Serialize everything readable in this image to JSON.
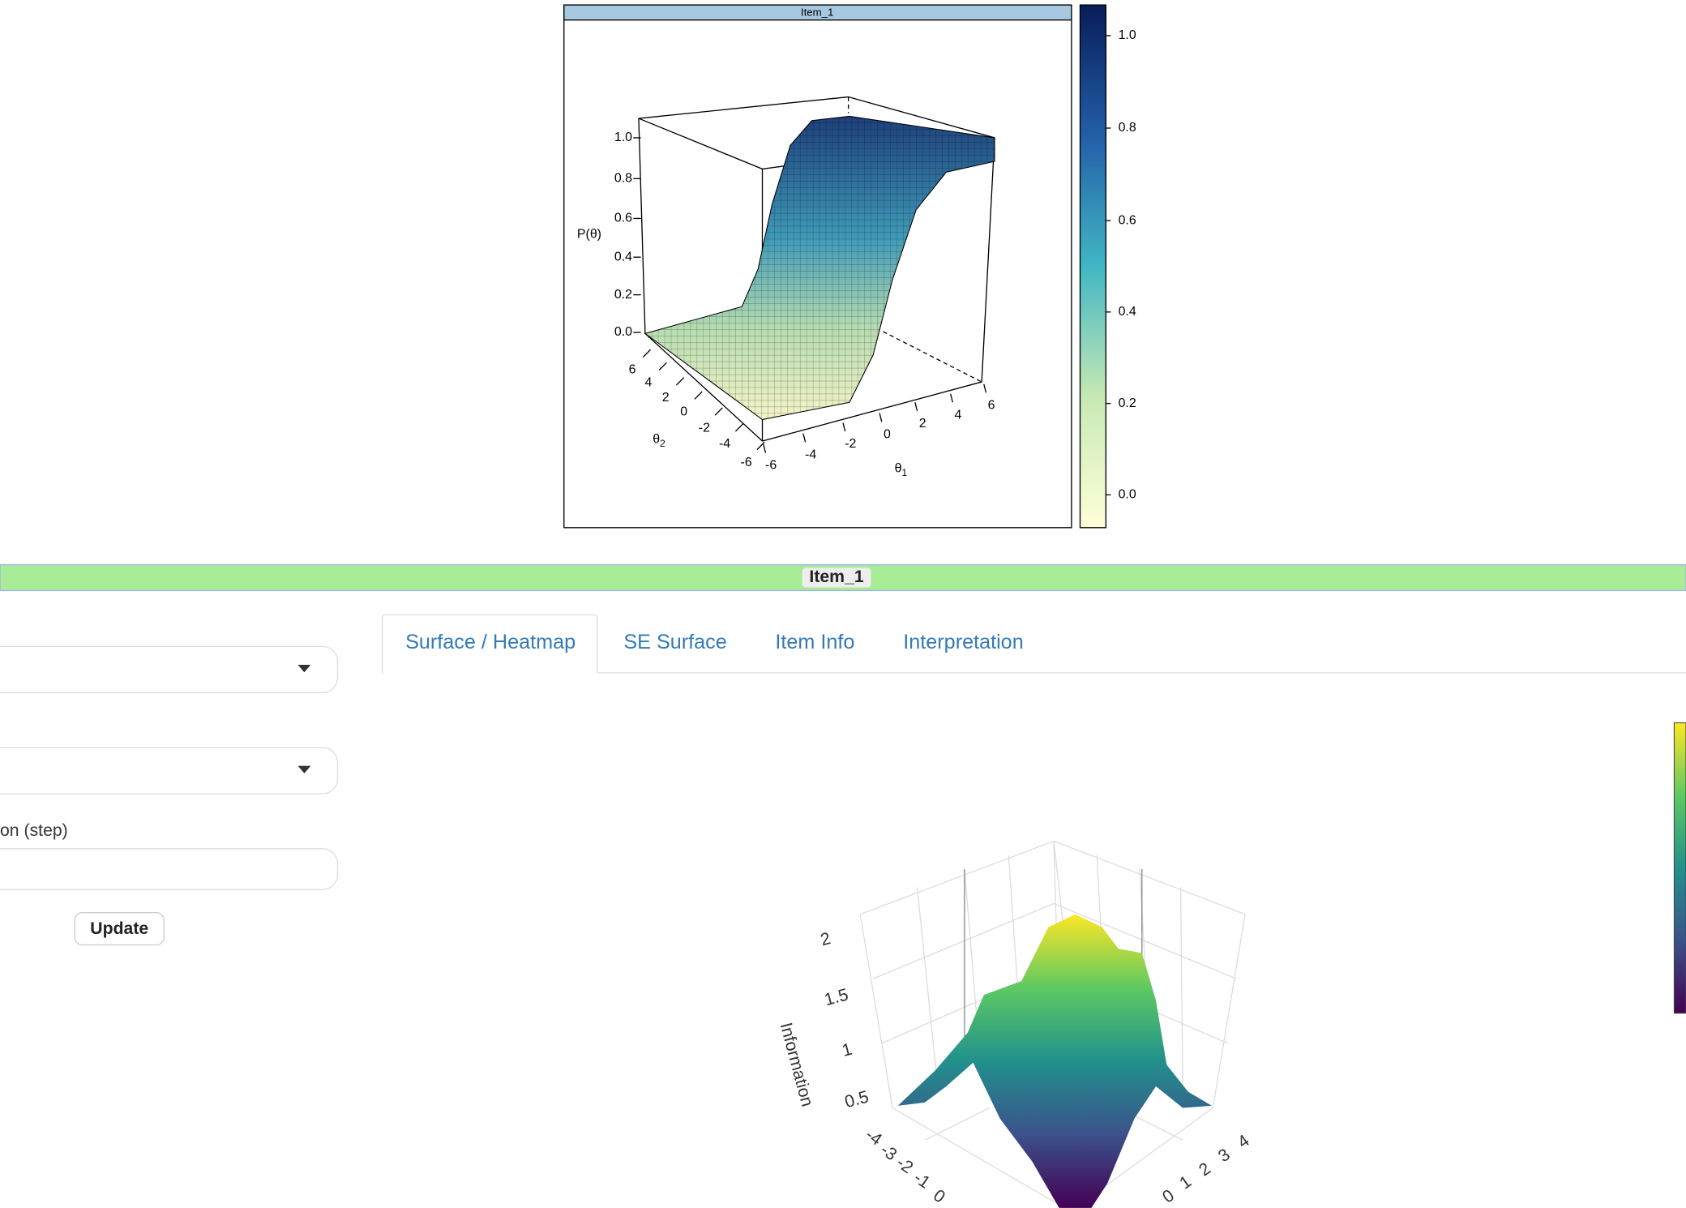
{
  "top_plot": {
    "strip": "Item_1",
    "z_label": "P(θ)",
    "z_ticks": [
      "0.0",
      "0.2",
      "0.4",
      "0.6",
      "0.8",
      "1.0"
    ],
    "x_label": "θ",
    "x_label_sub": "1",
    "y_label": "θ",
    "y_label_sub": "2",
    "x_ticks": [
      "-6",
      "-4",
      "-2",
      "0",
      "2",
      "4",
      "6"
    ],
    "y_ticks": [
      "-6",
      "-4",
      "-2",
      "0",
      "2",
      "4",
      "6"
    ],
    "colorbar_ticks": [
      "0.0",
      "0.2",
      "0.4",
      "0.6",
      "0.8",
      "1.0"
    ]
  },
  "item_bar": "Item_1",
  "sidebar": {
    "input_label": "on (step)",
    "button": "Update"
  },
  "tabs": [
    "Surface / Heatmap",
    "SE Surface",
    "Item Info",
    "Interpretation"
  ],
  "bottom_plot": {
    "z_label": "Information",
    "z_ticks": [
      "0.5",
      "1",
      "1.5",
      "2"
    ],
    "left_ticks": [
      "-4",
      "-3",
      "-2",
      "-1",
      "0"
    ],
    "right_ticks": [
      "0",
      "1",
      "2",
      "3",
      "4"
    ]
  }
}
